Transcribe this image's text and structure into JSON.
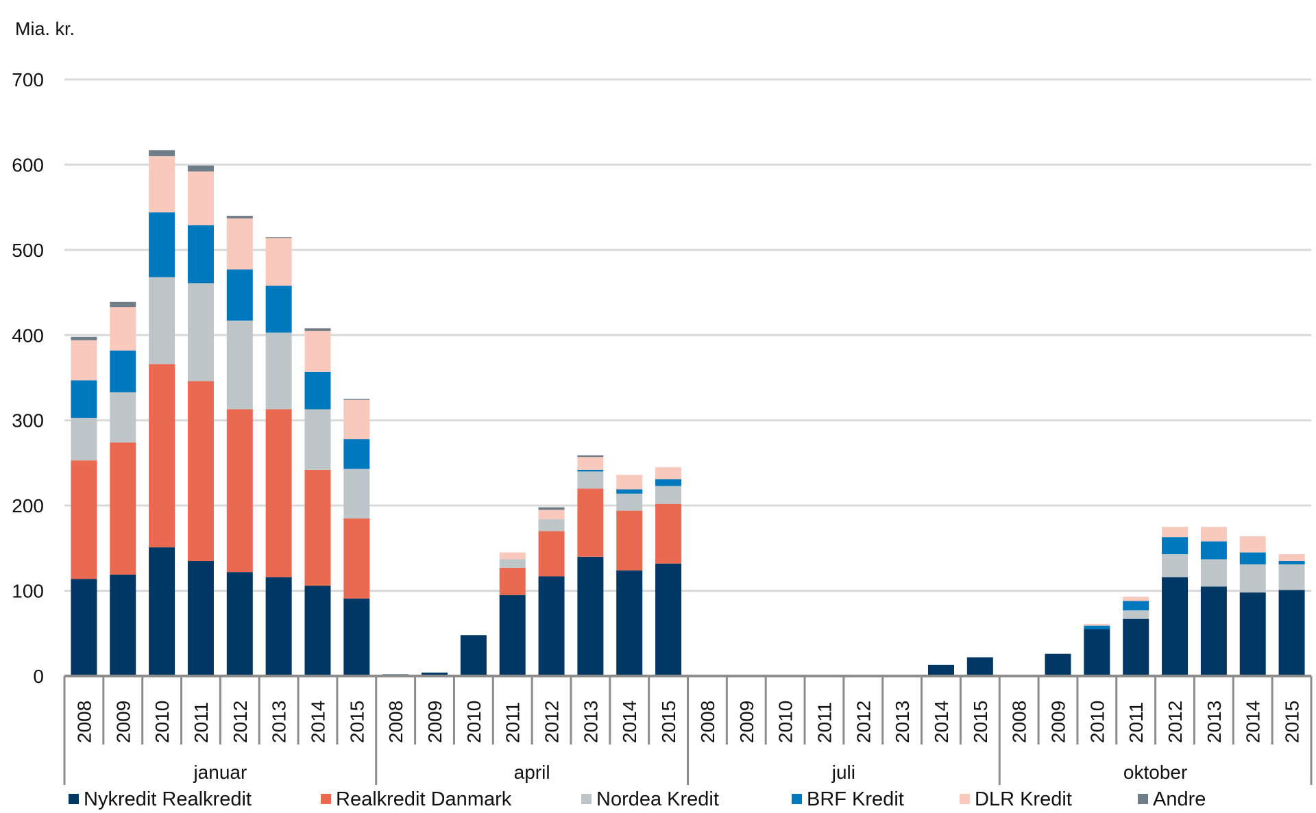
{
  "chart_data": {
    "type": "bar",
    "stacked": true,
    "ylabel": "Mia. kr.",
    "ylim": [
      0,
      700
    ],
    "yticks": [
      0,
      100,
      200,
      300,
      400,
      500,
      600,
      700
    ],
    "grid": true,
    "legend_position": "bottom",
    "groups": [
      "januar",
      "april",
      "juli",
      "oktober"
    ],
    "years": [
      "2008",
      "2009",
      "2010",
      "2011",
      "2012",
      "2013",
      "2014",
      "2015"
    ],
    "series": [
      {
        "name": "Nykredit Realkredit",
        "color": "#003764",
        "values": [
          114,
          119,
          151,
          135,
          122,
          116,
          106,
          91,
          2,
          4,
          48,
          95,
          117,
          140,
          124,
          132,
          0,
          0,
          0,
          0,
          0,
          0,
          13,
          22,
          1,
          26,
          55,
          67,
          116,
          105,
          98,
          101
        ]
      },
      {
        "name": "Realkredit Danmark",
        "color": "#ea6a51",
        "values": [
          139,
          155,
          215,
          211,
          191,
          197,
          136,
          94,
          0,
          0,
          0,
          32,
          53,
          80,
          70,
          70,
          0,
          0,
          0,
          0,
          0,
          0,
          0,
          0,
          0,
          0,
          0,
          0,
          0,
          0,
          0,
          0
        ]
      },
      {
        "name": "Nordea Kredit",
        "color": "#bec6ca",
        "values": [
          50,
          59,
          102,
          115,
          104,
          90,
          71,
          58,
          0,
          0,
          0,
          10,
          14,
          20,
          20,
          21,
          0,
          0,
          0,
          0,
          0,
          0,
          0,
          0,
          0,
          0,
          0,
          10,
          27,
          32,
          33,
          30
        ]
      },
      {
        "name": "BRF Kredit",
        "color": "#0078be",
        "values": [
          44,
          49,
          76,
          68,
          60,
          55,
          44,
          35,
          0,
          0,
          0,
          0,
          0,
          2,
          5,
          8,
          0,
          0,
          0,
          0,
          0,
          0,
          0,
          0,
          0,
          0,
          4,
          11,
          20,
          21,
          14,
          4
        ]
      },
      {
        "name": "DLR Kredit",
        "color": "#f8c9bc",
        "values": [
          47,
          51,
          66,
          63,
          60,
          56,
          48,
          46,
          0,
          0,
          0,
          8,
          11,
          15,
          17,
          14,
          0,
          0,
          0,
          0,
          0,
          0,
          0,
          0,
          0,
          0,
          2,
          5,
          12,
          17,
          19,
          8
        ]
      },
      {
        "name": "Andre",
        "color": "#6e7d87",
        "values": [
          4,
          6,
          7,
          7,
          3,
          1,
          3,
          1,
          0,
          0,
          0,
          0,
          3,
          2,
          0,
          0,
          0,
          0,
          0,
          0,
          0,
          0,
          0,
          0,
          0,
          0,
          0,
          0,
          0,
          0,
          0,
          0
        ]
      }
    ]
  }
}
